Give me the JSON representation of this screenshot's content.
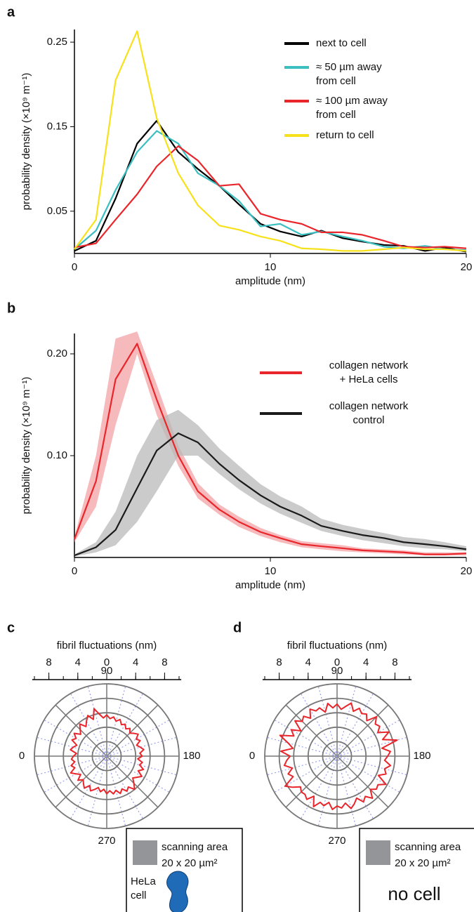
{
  "chart_data": [
    {
      "type": "line",
      "panel": "a",
      "xlabel": "amplitude (nm)",
      "ylabel": "probability density (×10⁹ m⁻¹)",
      "x": [
        0,
        1.1,
        2.1,
        3.2,
        4.2,
        5.3,
        6.3,
        7.4,
        8.4,
        9.5,
        10.5,
        11.6,
        12.6,
        13.7,
        14.7,
        15.8,
        16.8,
        17.9,
        18.9,
        20
      ],
      "xlim": [
        0,
        20
      ],
      "ylim": [
        0,
        0.265
      ],
      "xticks": [
        0,
        10,
        20
      ],
      "yticks": [
        0.05,
        0.15,
        0.25
      ],
      "series": [
        {
          "name": "next to cell",
          "color": "#000000",
          "values": [
            0.003,
            0.015,
            0.065,
            0.13,
            0.157,
            0.12,
            0.1,
            0.08,
            0.058,
            0.035,
            0.026,
            0.02,
            0.027,
            0.018,
            0.014,
            0.01,
            0.009,
            0.003,
            0.007,
            0.002
          ]
        },
        {
          "name": "≈ 50 µm away\nfrom cell",
          "color": "#3cbfc0",
          "values": [
            0.005,
            0.027,
            0.075,
            0.12,
            0.145,
            0.13,
            0.095,
            0.08,
            0.062,
            0.032,
            0.035,
            0.022,
            0.026,
            0.02,
            0.015,
            0.008,
            0.006,
            0.009,
            0.005,
            0.004
          ]
        },
        {
          "name": "≈ 100 µm away\nfrom cell",
          "color": "#e8262b",
          "values": [
            0.007,
            0.012,
            0.04,
            0.07,
            0.103,
            0.127,
            0.11,
            0.08,
            0.082,
            0.047,
            0.04,
            0.035,
            0.025,
            0.025,
            0.022,
            0.015,
            0.008,
            0.007,
            0.008,
            0.006
          ]
        },
        {
          "name": "return to cell",
          "color": "#f7e11b",
          "values": [
            0.005,
            0.04,
            0.205,
            0.263,
            0.16,
            0.095,
            0.057,
            0.033,
            0.028,
            0.02,
            0.015,
            0.006,
            0.005,
            0.003,
            0.003,
            0.005,
            0.007,
            0.005,
            0.005,
            0.003
          ]
        }
      ]
    },
    {
      "type": "line",
      "panel": "b",
      "xlabel": "amplitude (nm)",
      "ylabel": "probability density (×10⁹ m⁻¹)",
      "x": [
        0,
        1.1,
        2.1,
        3.2,
        4.2,
        5.3,
        6.3,
        7.4,
        8.4,
        9.5,
        10.5,
        11.6,
        12.6,
        13.7,
        14.7,
        15.8,
        16.8,
        17.9,
        18.9,
        20
      ],
      "xlim": [
        0,
        20
      ],
      "ylim": [
        0,
        0.22
      ],
      "xticks": [
        0,
        10,
        20
      ],
      "yticks": [
        {
          "value": 0.1,
          "label": "0.10"
        },
        {
          "value": 0.2,
          "label": "0.20"
        }
      ],
      "series": [
        {
          "name": "collagen network\n+ HeLa cells",
          "color": "#e8262b",
          "band_color": "#f4a3a5",
          "values": [
            0.018,
            0.075,
            0.175,
            0.21,
            0.155,
            0.1,
            0.065,
            0.047,
            0.035,
            0.025,
            0.019,
            0.013,
            0.011,
            0.009,
            0.007,
            0.006,
            0.005,
            0.003,
            0.003,
            0.004
          ],
          "lower": [
            0.015,
            0.05,
            0.13,
            0.2,
            0.14,
            0.09,
            0.058,
            0.042,
            0.03,
            0.021,
            0.015,
            0.01,
            0.008,
            0.006,
            0.005,
            0.004,
            0.003,
            0.002,
            0.002,
            0.002
          ],
          "upper": [
            0.02,
            0.1,
            0.215,
            0.222,
            0.17,
            0.11,
            0.073,
            0.052,
            0.04,
            0.029,
            0.022,
            0.016,
            0.014,
            0.012,
            0.009,
            0.008,
            0.007,
            0.005,
            0.005,
            0.005
          ]
        },
        {
          "name": "collagen network\ncontrol",
          "color": "#1a1a1a",
          "band_color": "#b9b9b9",
          "values": [
            0.002,
            0.01,
            0.027,
            0.068,
            0.105,
            0.122,
            0.113,
            0.092,
            0.076,
            0.061,
            0.05,
            0.041,
            0.031,
            0.026,
            0.022,
            0.019,
            0.015,
            0.013,
            0.011,
            0.008
          ],
          "lower": [
            0.001,
            0.005,
            0.012,
            0.035,
            0.065,
            0.1,
            0.1,
            0.082,
            0.067,
            0.053,
            0.043,
            0.034,
            0.026,
            0.021,
            0.017,
            0.014,
            0.011,
            0.009,
            0.008,
            0.006
          ],
          "upper": [
            0.003,
            0.015,
            0.045,
            0.1,
            0.135,
            0.145,
            0.13,
            0.107,
            0.09,
            0.072,
            0.06,
            0.05,
            0.038,
            0.032,
            0.028,
            0.024,
            0.02,
            0.018,
            0.015,
            0.011
          ]
        }
      ]
    },
    {
      "type": "polar",
      "panel": "c",
      "scale_label": "fibril fluctuations (nm)",
      "scale_lim": [
        -10.3,
        10.3
      ],
      "scale_ticks": [
        {
          "value": -8,
          "label": "8"
        },
        {
          "value": -4,
          "label": "4"
        },
        0,
        4,
        8
      ],
      "angle_ticks": [
        0,
        90,
        180,
        270
      ],
      "rgrid": [
        2,
        4,
        6,
        8,
        10
      ],
      "theta": [
        0,
        5,
        10,
        15,
        20,
        25,
        30,
        35,
        40,
        45,
        50,
        55,
        60,
        65,
        70,
        75,
        80,
        85,
        90,
        95,
        100,
        105,
        110,
        115,
        120,
        125,
        130,
        135,
        140,
        145,
        150,
        155,
        160,
        165,
        170,
        175,
        180,
        185,
        190,
        195,
        200,
        205,
        210,
        215,
        220,
        225,
        230,
        235,
        240,
        245,
        250,
        255,
        260,
        265,
        270,
        275,
        280,
        285,
        290,
        295,
        300,
        305,
        310,
        315,
        320,
        325,
        330,
        335,
        340,
        345,
        350,
        355
      ],
      "series": [
        {
          "color": "#e8262b",
          "values": [
            4.6,
            4.2,
            5.1,
            4.8,
            4.4,
            5.3,
            4.9,
            5.5,
            4.7,
            5.2,
            5.8,
            5.0,
            5.6,
            6.2,
            5.4,
            6.8,
            5.9,
            5.3,
            5.7,
            5.2,
            5.5,
            5.0,
            5.4,
            4.8,
            5.1,
            4.6,
            5.0,
            4.5,
            4.9,
            5.3,
            4.7,
            5.1,
            4.4,
            4.8,
            5.2,
            4.6,
            4.9,
            4.3,
            5.0,
            4.7,
            5.4,
            4.8,
            5.6,
            5.1,
            4.7,
            5.3,
            6.0,
            5.2,
            5.6,
            5.0,
            5.5,
            4.9,
            5.3,
            4.8,
            5.2,
            4.6,
            5.0,
            4.5,
            4.9,
            5.3,
            4.7,
            5.4,
            5.0,
            4.6,
            5.2,
            4.4,
            4.9,
            5.5,
            4.7,
            5.1,
            4.5,
            4.9
          ]
        }
      ],
      "inset": {
        "area_label": "scanning area",
        "area_size": "20 x 20 µm²",
        "cell_label": "HeLa cell"
      }
    },
    {
      "type": "polar",
      "panel": "d",
      "scale_label": "fibril fluctuations (nm)",
      "scale_lim": [
        -10.3,
        10.3
      ],
      "scale_ticks": [
        {
          "value": -8,
          "label": "8"
        },
        {
          "value": -4,
          "label": "4"
        },
        0,
        4,
        8
      ],
      "angle_ticks": [
        0,
        90,
        180,
        270
      ],
      "rgrid": [
        2,
        4,
        6,
        8,
        10
      ],
      "theta": [
        0,
        5,
        10,
        15,
        20,
        25,
        30,
        35,
        40,
        45,
        50,
        55,
        60,
        65,
        70,
        75,
        80,
        85,
        90,
        95,
        100,
        105,
        110,
        115,
        120,
        125,
        130,
        135,
        140,
        145,
        150,
        155,
        160,
        165,
        170,
        175,
        180,
        185,
        190,
        195,
        200,
        205,
        210,
        215,
        220,
        225,
        230,
        235,
        240,
        245,
        250,
        255,
        260,
        265,
        270,
        275,
        280,
        285,
        290,
        295,
        300,
        305,
        310,
        315,
        320,
        325,
        330,
        335,
        340,
        345,
        350,
        355
      ],
      "series": [
        {
          "color": "#e8262b",
          "values": [
            6.5,
            7.8,
            6.2,
            7.0,
            8.4,
            6.6,
            7.3,
            6.1,
            7.6,
            6.8,
            7.2,
            6.4,
            7.5,
            6.9,
            7.1,
            6.3,
            7.4,
            6.7,
            7.2,
            6.5,
            7.0,
            7.6,
            6.6,
            7.3,
            6.8,
            7.1,
            6.4,
            7.7,
            6.9,
            7.2,
            6.5,
            7.9,
            6.7,
            8.6,
            6.3,
            7.4,
            7.0,
            6.6,
            7.5,
            6.8,
            7.2,
            6.3,
            7.8,
            6.9,
            7.1,
            6.5,
            7.6,
            6.8,
            7.3,
            6.4,
            7.0,
            7.5,
            6.6,
            7.2,
            6.9,
            7.4,
            6.5,
            7.1,
            6.8,
            7.7,
            6.4,
            7.3,
            6.9,
            7.0,
            6.6,
            7.5,
            8.3,
            6.7,
            7.2,
            6.4,
            7.4,
            7.0
          ]
        }
      ],
      "inset": {
        "area_label": "scanning area",
        "area_size": "20 x 20 µm²",
        "cell_label": "no cell"
      }
    }
  ]
}
